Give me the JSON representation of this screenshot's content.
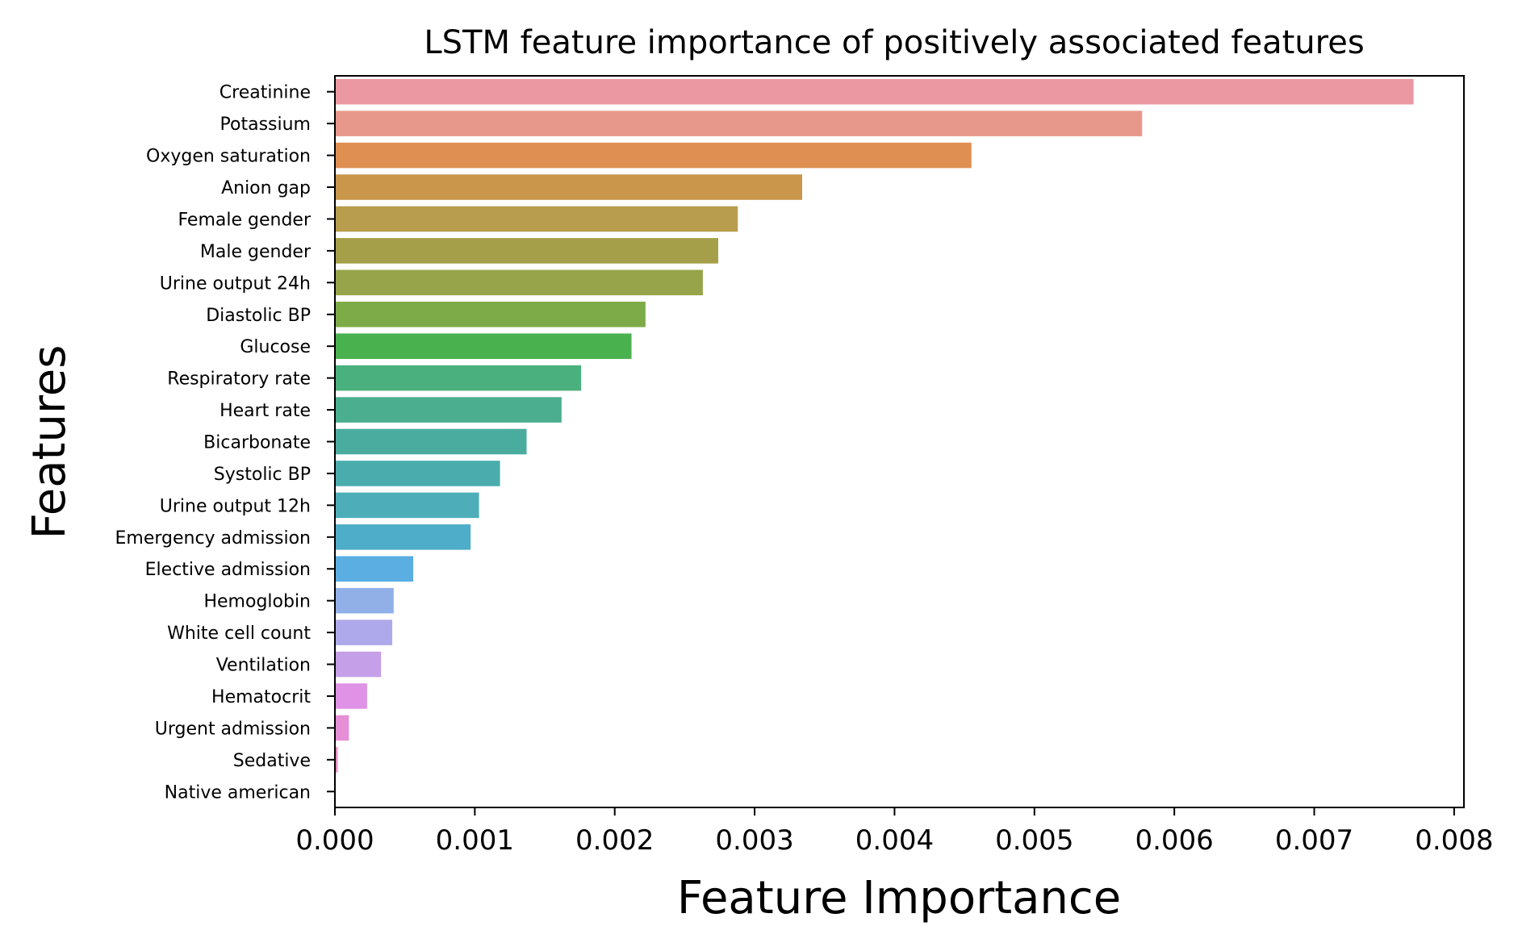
{
  "chart_data": {
    "type": "bar",
    "orientation": "horizontal",
    "title": "LSTM feature importance of positively associated features",
    "xlabel": "Feature Importance",
    "ylabel": "Features",
    "xlim": [
      0,
      0.00807
    ],
    "xticks": [
      "0.000",
      "0.001",
      "0.002",
      "0.003",
      "0.004",
      "0.005",
      "0.006",
      "0.007",
      "0.008"
    ],
    "grid": false,
    "categories": [
      "Creatinine",
      "Potassium",
      "Oxygen saturation",
      "Anion gap",
      "Female gender",
      "Male gender",
      "Urine output 24h",
      "Diastolic BP",
      "Glucose",
      "Respiratory rate",
      "Heart rate",
      "Bicarbonate",
      "Systolic BP",
      "Urine output 12h",
      "Emergency admission",
      "Elective admission",
      "Hemoglobin",
      "White cell count",
      "Ventilation",
      "Hematocrit",
      "Urgent admission",
      "Sedative",
      "Native american"
    ],
    "values": [
      0.00771,
      0.00577,
      0.00455,
      0.00334,
      0.00288,
      0.00274,
      0.00263,
      0.00222,
      0.00212,
      0.00176,
      0.00162,
      0.00137,
      0.00118,
      0.00103,
      0.00097,
      0.00056,
      0.00042,
      0.00041,
      0.00033,
      0.00023,
      0.0001,
      2e-05,
      0.0
    ],
    "colors": [
      "#ec98a2",
      "#e8988a",
      "#df8f52",
      "#c9964b",
      "#b99d4e",
      "#a59f49",
      "#97a44a",
      "#7dab47",
      "#4ab14f",
      "#4ab07e",
      "#4aae8f",
      "#4aac9f",
      "#4aacac",
      "#4daeb9",
      "#4eadc8",
      "#5aaee2",
      "#91b0e8",
      "#aea9ea",
      "#c5a0e8",
      "#df92e6",
      "#e68fd6",
      "#e98ec8",
      "#ec95b4"
    ]
  }
}
